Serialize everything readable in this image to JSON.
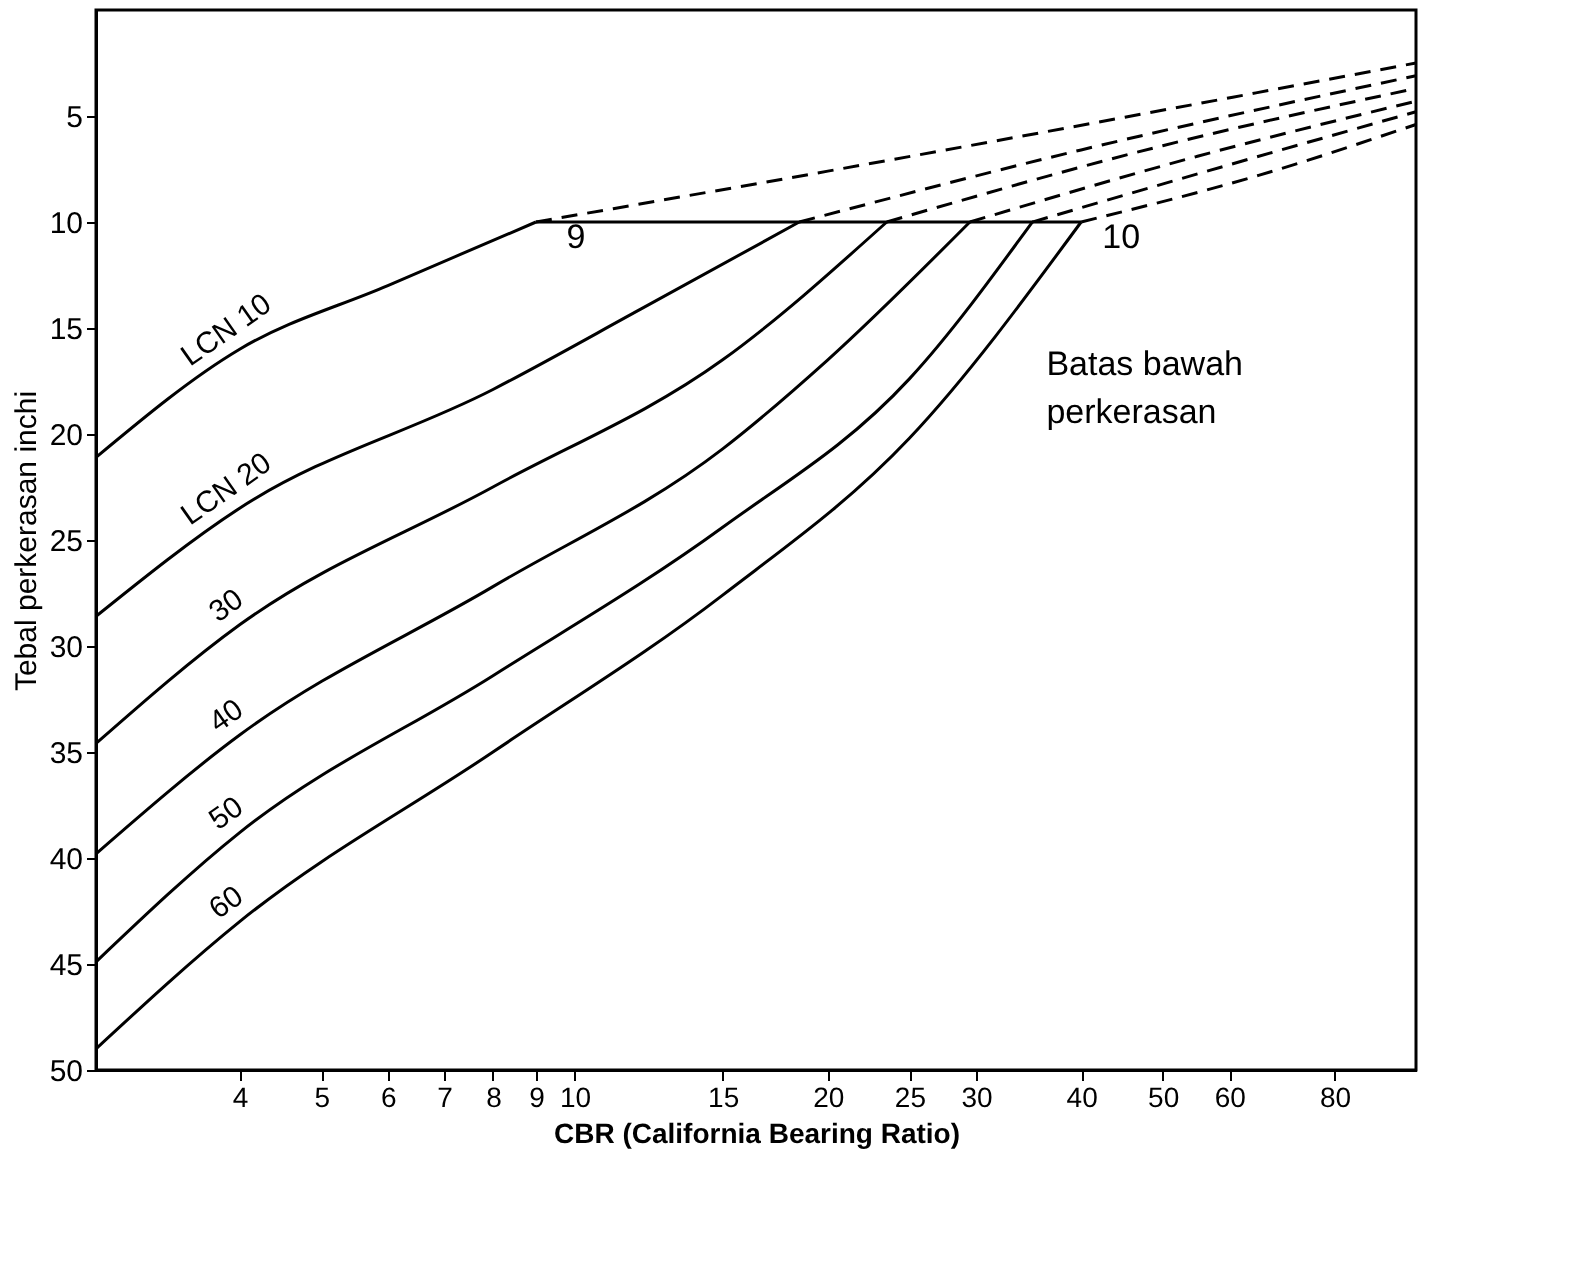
{
  "chart_data": {
    "type": "line",
    "xlabel": "CBR (California Bearing Ratio)",
    "ylabel": "Tebal perkerasan inchi",
    "log": "x",
    "grid": false,
    "xlim": [
      2.7,
      100
    ],
    "ylim": [
      50,
      0
    ],
    "xticks": [
      4,
      5,
      6,
      7,
      8,
      9,
      10,
      15,
      20,
      25,
      30,
      40,
      50,
      60,
      80
    ],
    "yticks": [
      5,
      10,
      15,
      20,
      25,
      30,
      35,
      40,
      45,
      50
    ],
    "series": [
      {
        "name": "LCN 10",
        "color": "#000000",
        "line_style": "solid",
        "x": [
          2.7,
          4,
          6,
          9
        ],
        "values": [
          21.1,
          16,
          13,
          10
        ]
      },
      {
        "name": "LCN 20",
        "color": "#000000",
        "line_style": "solid",
        "x": [
          2.7,
          4,
          8,
          12,
          18.5
        ],
        "values": [
          28.6,
          23.5,
          17.9,
          14.1,
          10
        ]
      },
      {
        "name": "30",
        "color": "#000000",
        "line_style": "solid",
        "x": [
          2.7,
          4,
          8,
          15,
          23.5
        ],
        "values": [
          34.6,
          29,
          22.5,
          16.5,
          10
        ]
      },
      {
        "name": "40",
        "color": "#000000",
        "line_style": "solid",
        "x": [
          2.7,
          4,
          8,
          15,
          20,
          29.5
        ],
        "values": [
          39.8,
          34.2,
          27.2,
          20.7,
          16.5,
          10
        ]
      },
      {
        "name": "50",
        "color": "#000000",
        "line_style": "solid",
        "x": [
          2.7,
          4,
          8,
          15,
          25,
          35
        ],
        "values": [
          44.9,
          38.8,
          31.4,
          24.4,
          17.4,
          10
        ]
      },
      {
        "name": "60",
        "color": "#000000",
        "line_style": "solid",
        "x": [
          2.7,
          4,
          8,
          15,
          25,
          40
        ],
        "values": [
          49,
          43,
          35,
          27.6,
          20.2,
          10
        ]
      },
      {
        "color": "#000000",
        "line_style": "solid",
        "x": [
          9,
          40
        ],
        "values": [
          10,
          10
        ]
      },
      {
        "color": "#000000",
        "line_style": "dashed",
        "x": [
          9,
          20,
          100
        ],
        "values": [
          10,
          7.6,
          2.5
        ]
      },
      {
        "color": "#000000",
        "line_style": "dashed",
        "x": [
          18.5,
          40,
          100
        ],
        "values": [
          10,
          6.6,
          3.1
        ]
      },
      {
        "color": "#000000",
        "line_style": "dashed",
        "x": [
          23.5,
          50,
          100
        ],
        "values": [
          10,
          6.4,
          3.7
        ]
      },
      {
        "color": "#000000",
        "line_style": "dashed",
        "x": [
          29.5,
          55,
          100
        ],
        "values": [
          10,
          6.9,
          4.3
        ]
      },
      {
        "color": "#000000",
        "line_style": "dashed",
        "x": [
          35,
          60,
          100
        ],
        "values": [
          10,
          7.3,
          4.8
        ]
      },
      {
        "color": "#000000",
        "line_style": "dashed",
        "x": [
          40,
          65,
          100
        ],
        "values": [
          10,
          7.8,
          5.4
        ]
      }
    ],
    "annotations": [
      {
        "text": "9",
        "x": 9,
        "y": 10
      },
      {
        "text": "10",
        "x": 40,
        "y": 10
      },
      "Batas bawah perkerasan"
    ]
  }
}
